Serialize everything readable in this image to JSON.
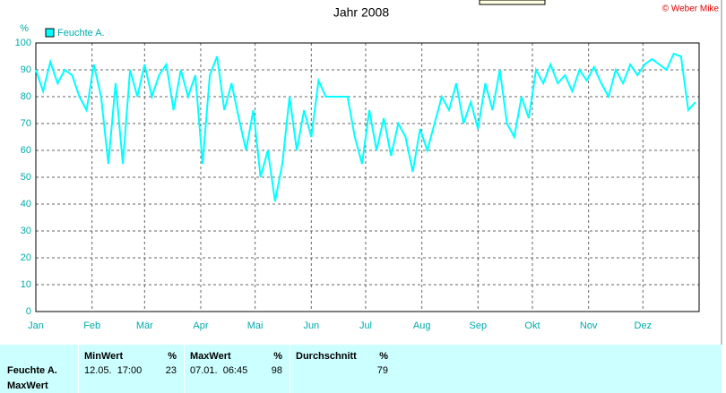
{
  "chart_data": {
    "type": "line",
    "title": "Jahr 2008",
    "credit": "© Weber Mike",
    "y_unit": "%",
    "x": [
      0,
      4,
      8,
      12,
      16,
      20,
      24,
      28,
      32,
      36,
      40,
      44,
      48,
      52,
      56,
      60,
      64,
      68,
      72,
      76,
      80,
      84,
      88,
      92,
      96,
      100,
      104,
      108,
      112,
      116,
      120,
      124,
      128,
      132,
      136,
      140,
      144,
      148,
      152,
      156,
      160,
      164,
      168,
      172,
      176,
      180,
      184,
      188,
      192,
      196,
      200,
      204,
      208,
      212,
      216,
      220,
      224,
      228,
      232,
      236,
      240,
      244,
      248,
      252,
      256,
      260,
      264,
      268,
      272,
      276,
      280,
      284,
      288,
      292,
      296,
      300,
      304,
      308,
      312,
      316,
      320,
      324,
      328,
      332,
      336,
      340,
      344,
      348,
      352,
      356,
      360,
      364
    ],
    "series": [
      {
        "name": "Feuchte A.",
        "color": "#00ffff",
        "values": [
          90,
          82,
          93,
          85,
          90,
          88,
          80,
          75,
          92,
          80,
          55,
          85,
          55,
          90,
          80,
          92,
          80,
          88,
          92,
          75,
          90,
          80,
          88,
          55,
          88,
          95,
          75,
          85,
          72,
          60,
          75,
          50,
          60,
          41,
          55,
          80,
          60,
          75,
          65,
          86,
          80,
          80,
          80,
          80,
          65,
          55,
          75,
          60,
          72,
          58,
          70,
          65,
          52,
          68,
          60,
          70,
          80,
          75,
          85,
          70,
          78,
          68,
          85,
          75,
          90,
          70,
          65,
          80,
          72,
          90,
          85,
          92,
          85,
          88,
          82,
          90,
          86,
          91,
          85,
          80,
          90,
          85,
          92,
          88,
          92,
          94,
          92,
          90,
          96,
          95,
          75,
          78
        ]
      }
    ],
    "xlim": [
      0,
      366
    ],
    "xticks": [
      {
        "value": 0,
        "label": "Jan"
      },
      {
        "value": 31,
        "label": "Feb"
      },
      {
        "value": 60,
        "label": "Mär"
      },
      {
        "value": 91,
        "label": "Apr"
      },
      {
        "value": 121,
        "label": "Mai"
      },
      {
        "value": 152,
        "label": "Jun"
      },
      {
        "value": 182,
        "label": "Jul"
      },
      {
        "value": 213,
        "label": "Aug"
      },
      {
        "value": 244,
        "label": "Sep"
      },
      {
        "value": 274,
        "label": "Okt"
      },
      {
        "value": 305,
        "label": "Nov"
      },
      {
        "value": 335,
        "label": "Dez"
      }
    ],
    "ylim": [
      0,
      100
    ],
    "yticks": [
      0,
      10,
      20,
      30,
      40,
      50,
      60,
      70,
      80,
      90,
      100
    ],
    "grid": true,
    "legend": "top-left"
  },
  "table": {
    "row_label": "Feuchte A.",
    "row_sublabel": "MaxWert",
    "columns": [
      {
        "title": "MinWert",
        "unit": "%",
        "time": "12.05.  17:00",
        "value": "23"
      },
      {
        "title": "MaxWert",
        "unit": "%",
        "time": "07.01.  06:45",
        "value": "98"
      },
      {
        "title": "Durchschnitt",
        "unit": "%",
        "time": "",
        "value": "79"
      }
    ]
  }
}
